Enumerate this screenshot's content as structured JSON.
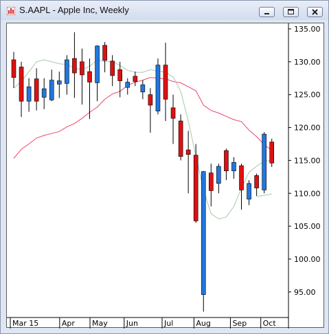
{
  "window": {
    "title": "S.AAPL - Apple Inc, Weekly",
    "controls": [
      "minimize",
      "maximize",
      "close"
    ],
    "app_icon": "chart-app-icon"
  },
  "colors": {
    "up": "#2277dd",
    "down": "#dd1111",
    "wick": "#000000",
    "ma_short": "#a8c8a8",
    "ma_long": "#ee4466",
    "background": "#ffffff"
  },
  "chart_data": {
    "type": "candlestick",
    "title": "S.AAPL - Apple Inc, Weekly",
    "ylim": [
      90,
      136
    ],
    "y_ticks": [
      "135.00",
      "130.00",
      "125.00",
      "120.00",
      "115.00",
      "110.00",
      "105.00",
      "100.00",
      "95.00"
    ],
    "y_tick_values": [
      135,
      130,
      125,
      120,
      115,
      110,
      105,
      100,
      95
    ],
    "x_ticks": [
      "Mar 15",
      "Apr",
      "May",
      "Jun",
      "Jul",
      "Aug",
      "Sep",
      "Oct"
    ],
    "x_tick_index": [
      0,
      6.5,
      10.5,
      15,
      20,
      24.2,
      29,
      33
    ],
    "candles": [
      {
        "o": 130.3,
        "h": 131.5,
        "l": 126.0,
        "c": 127.6
      },
      {
        "o": 129.2,
        "h": 130.0,
        "l": 121.6,
        "c": 124.0
      },
      {
        "o": 124.0,
        "h": 127.5,
        "l": 122.4,
        "c": 126.2
      },
      {
        "o": 127.4,
        "h": 129.0,
        "l": 122.6,
        "c": 124.0
      },
      {
        "o": 124.6,
        "h": 127.5,
        "l": 122.8,
        "c": 125.9
      },
      {
        "o": 124.2,
        "h": 128.8,
        "l": 124.0,
        "c": 127.2
      },
      {
        "o": 126.6,
        "h": 128.5,
        "l": 124.5,
        "c": 127.1
      },
      {
        "o": 126.7,
        "h": 131.0,
        "l": 125.0,
        "c": 130.3
      },
      {
        "o": 130.5,
        "h": 134.5,
        "l": 124.5,
        "c": 128.3
      },
      {
        "o": 130.0,
        "h": 132.0,
        "l": 123.5,
        "c": 128.0
      },
      {
        "o": 128.5,
        "h": 130.5,
        "l": 121.3,
        "c": 126.9
      },
      {
        "o": 126.8,
        "h": 132.5,
        "l": 124.0,
        "c": 132.4
      },
      {
        "o": 132.5,
        "h": 133.0,
        "l": 128.4,
        "c": 130.2
      },
      {
        "o": 130.1,
        "h": 131.0,
        "l": 126.3,
        "c": 127.9
      },
      {
        "o": 128.8,
        "h": 130.0,
        "l": 124.6,
        "c": 127.1
      },
      {
        "o": 126.1,
        "h": 127.5,
        "l": 125.0,
        "c": 126.9
      },
      {
        "o": 127.8,
        "h": 128.5,
        "l": 126.3,
        "c": 127.0
      },
      {
        "o": 125.4,
        "h": 127.2,
        "l": 124.3,
        "c": 126.5
      },
      {
        "o": 125.0,
        "h": 126.0,
        "l": 119.2,
        "c": 123.4
      },
      {
        "o": 122.5,
        "h": 130.5,
        "l": 122.0,
        "c": 129.5
      },
      {
        "o": 129.5,
        "h": 132.9,
        "l": 121.0,
        "c": 124.3
      },
      {
        "o": 123.0,
        "h": 125.0,
        "l": 117.5,
        "c": 121.4
      },
      {
        "o": 121.0,
        "h": 122.0,
        "l": 115.0,
        "c": 115.6
      },
      {
        "o": 116.6,
        "h": 119.5,
        "l": 110.0,
        "c": 115.9
      },
      {
        "o": 115.8,
        "h": 117.5,
        "l": 105.5,
        "c": 105.8
      },
      {
        "o": 94.6,
        "h": 113.4,
        "l": 92.0,
        "c": 113.3
      },
      {
        "o": 113.1,
        "h": 114.5,
        "l": 108.0,
        "c": 110.4
      },
      {
        "o": 111.5,
        "h": 114.5,
        "l": 110.0,
        "c": 114.1
      },
      {
        "o": 116.5,
        "h": 116.8,
        "l": 112.0,
        "c": 113.4
      },
      {
        "o": 113.4,
        "h": 115.5,
        "l": 112.2,
        "c": 114.7
      },
      {
        "o": 114.2,
        "h": 114.5,
        "l": 107.5,
        "c": 110.5
      },
      {
        "o": 109.1,
        "h": 112.0,
        "l": 108.2,
        "c": 111.5
      },
      {
        "o": 112.7,
        "h": 113.0,
        "l": 109.6,
        "c": 110.8
      },
      {
        "o": 110.5,
        "h": 119.3,
        "l": 110.0,
        "c": 119.0
      },
      {
        "o": 117.8,
        "h": 118.3,
        "l": 114.0,
        "c": 114.6
      }
    ],
    "ma_short": [
      [
        0,
        126.0
      ],
      [
        1,
        127.0
      ],
      [
        2,
        128.5
      ],
      [
        3,
        130.0
      ],
      [
        4,
        130.3
      ],
      [
        5,
        130.0
      ],
      [
        6,
        129.7
      ],
      [
        7,
        129.6
      ],
      [
        8,
        129.0
      ],
      [
        9,
        128.8
      ],
      [
        10,
        129.3
      ],
      [
        11,
        130.3
      ],
      [
        12,
        130.0
      ],
      [
        13,
        130.1
      ],
      [
        14,
        129.4
      ],
      [
        15,
        128.7
      ],
      [
        16,
        128.4
      ],
      [
        17,
        128.4
      ],
      [
        18,
        128.8
      ],
      [
        19,
        128.6
      ],
      [
        20,
        128.4
      ],
      [
        21,
        127.7
      ],
      [
        22,
        125.5
      ],
      [
        23,
        121.0
      ],
      [
        24,
        115.7
      ],
      [
        25,
        110.5
      ],
      [
        26,
        106.9
      ],
      [
        27,
        106.1
      ],
      [
        28,
        106.4
      ],
      [
        29,
        108.0
      ],
      [
        30,
        110.8
      ],
      [
        31,
        113.2
      ],
      [
        32,
        114.1
      ],
      [
        33,
        114.9
      ],
      [
        34,
        115.0
      ]
    ],
    "ma_long": [
      [
        0,
        115.3
      ],
      [
        1,
        116.7
      ],
      [
        2,
        117.5
      ],
      [
        3,
        118.4
      ],
      [
        4,
        118.8
      ],
      [
        5,
        119.1
      ],
      [
        6,
        119.4
      ],
      [
        7,
        120.1
      ],
      [
        8,
        120.6
      ],
      [
        9,
        121.4
      ],
      [
        10,
        122.3
      ],
      [
        11,
        123.1
      ],
      [
        12,
        124.3
      ],
      [
        13,
        125.1
      ],
      [
        14,
        125.5
      ],
      [
        15,
        126.4
      ],
      [
        16,
        126.9
      ],
      [
        17,
        127.2
      ],
      [
        18,
        127.6
      ],
      [
        19,
        127.5
      ],
      [
        20,
        127.4
      ],
      [
        21,
        127.0
      ],
      [
        22,
        126.8
      ],
      [
        23,
        126.2
      ],
      [
        24,
        125.6
      ],
      [
        25,
        123.4
      ],
      [
        26,
        122.6
      ],
      [
        27,
        122.2
      ],
      [
        28,
        121.7
      ],
      [
        29,
        121.2
      ],
      [
        30,
        120.9
      ],
      [
        31,
        119.6
      ],
      [
        32,
        118.6
      ],
      [
        33,
        117.4
      ],
      [
        34,
        116.5
      ]
    ],
    "ma_short_extra": [
      [
        32,
        109.5
      ],
      [
        34,
        109.9
      ]
    ]
  }
}
